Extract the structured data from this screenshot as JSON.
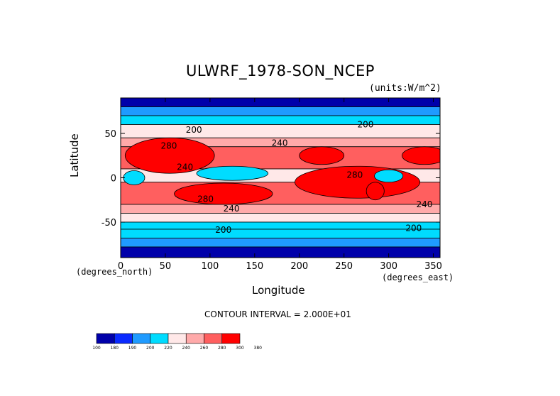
{
  "chart_data": {
    "type": "heatmap",
    "title": "ULWRF_1978-SON_NCEP",
    "units_label": "(units:W/m^2)",
    "xlabel": "Longitude",
    "ylabel": "Latitude",
    "x_unit_label": "(degrees_east)",
    "y_unit_label": "(degrees_north)",
    "xlim": [
      0,
      357.5
    ],
    "ylim": [
      -90,
      90
    ],
    "x_ticks": [
      "0",
      "50",
      "100",
      "150",
      "200",
      "250",
      "300",
      "350"
    ],
    "x_tick_values": [
      0,
      50,
      100,
      150,
      200,
      250,
      300,
      350
    ],
    "y_ticks": [
      "50",
      "0",
      "-50"
    ],
    "y_tick_values": [
      50,
      0,
      -50
    ],
    "contour_interval_label": "CONTOUR INTERVAL = 2.000E+01",
    "contour_labels": [
      {
        "text": "200",
        "lon": 82,
        "lat": 51
      },
      {
        "text": "240",
        "lon": 178,
        "lat": 36
      },
      {
        "text": "280",
        "lon": 54,
        "lat": 33
      },
      {
        "text": "240",
        "lon": 72,
        "lat": 9
      },
      {
        "text": "280",
        "lon": 262,
        "lat": 0
      },
      {
        "text": "280",
        "lon": 95,
        "lat": -27
      },
      {
        "text": "240",
        "lon": 124,
        "lat": -38
      },
      {
        "text": "240",
        "lon": 340,
        "lat": -33
      },
      {
        "text": "200",
        "lon": 115,
        "lat": -62
      },
      {
        "text": "200",
        "lon": 328,
        "lat": -60
      },
      {
        "text": "200",
        "lon": 274,
        "lat": 57
      }
    ],
    "colorbar": {
      "levels": [
        "100",
        "180",
        "190",
        "200",
        "220",
        "240",
        "260",
        "280",
        "300",
        "380"
      ],
      "colors": [
        "#0000aa",
        "#0a2aff",
        "#1f9bff",
        "#00dcff",
        "#ffe8e8",
        "#ffaaaa",
        "#ff5f5f",
        "#ff0000"
      ]
    },
    "bands": [
      {
        "lat_top": 90,
        "lat_bottom": 80,
        "value": 170
      },
      {
        "lat_top": 80,
        "lat_bottom": 70,
        "value": 195
      },
      {
        "lat_top": 70,
        "lat_bottom": 60,
        "value": 205
      },
      {
        "lat_top": 60,
        "lat_bottom": 45,
        "value": 225
      },
      {
        "lat_top": 45,
        "lat_bottom": 35,
        "value": 250
      },
      {
        "lat_top": 35,
        "lat_bottom": 10,
        "value": 270
      },
      {
        "lat_top": 10,
        "lat_bottom": -5,
        "value": 230
      },
      {
        "lat_top": -5,
        "lat_bottom": -30,
        "value": 275
      },
      {
        "lat_top": -30,
        "lat_bottom": -40,
        "value": 250
      },
      {
        "lat_top": -40,
        "lat_bottom": -50,
        "value": 232
      },
      {
        "lat_top": -50,
        "lat_bottom": -58,
        "value": 215
      },
      {
        "lat_top": -58,
        "lat_bottom": -68,
        "value": 200
      },
      {
        "lat_top": -68,
        "lat_bottom": -78,
        "value": 190
      },
      {
        "lat_top": -78,
        "lat_bottom": -90,
        "value": 170
      }
    ],
    "blobs": [
      {
        "lon": 55,
        "lat": 22,
        "rlon": 28,
        "rlat": 10,
        "value": 310
      },
      {
        "lon": 55,
        "lat": 25,
        "rlon": 50,
        "rlat": 20,
        "value": 285
      },
      {
        "lon": 265,
        "lat": -5,
        "rlon": 70,
        "rlat": 18,
        "value": 285
      },
      {
        "lon": 115,
        "lat": -18,
        "rlon": 55,
        "rlat": 12,
        "value": 285
      },
      {
        "lon": 225,
        "lat": 25,
        "rlon": 25,
        "rlat": 10,
        "value": 285
      },
      {
        "lon": 340,
        "lat": 25,
        "rlon": 25,
        "rlat": 10,
        "value": 285
      },
      {
        "lon": 125,
        "lat": 5,
        "rlon": 40,
        "rlat": 8,
        "value": 205
      },
      {
        "lon": 15,
        "lat": 0,
        "rlon": 12,
        "rlat": 8,
        "value": 205
      },
      {
        "lon": 300,
        "lat": 2,
        "rlon": 16,
        "rlat": 7,
        "value": 205
      },
      {
        "lon": 285,
        "lat": -15,
        "rlon": 10,
        "rlat": 10,
        "value": 300
      }
    ],
    "grid": false
  }
}
